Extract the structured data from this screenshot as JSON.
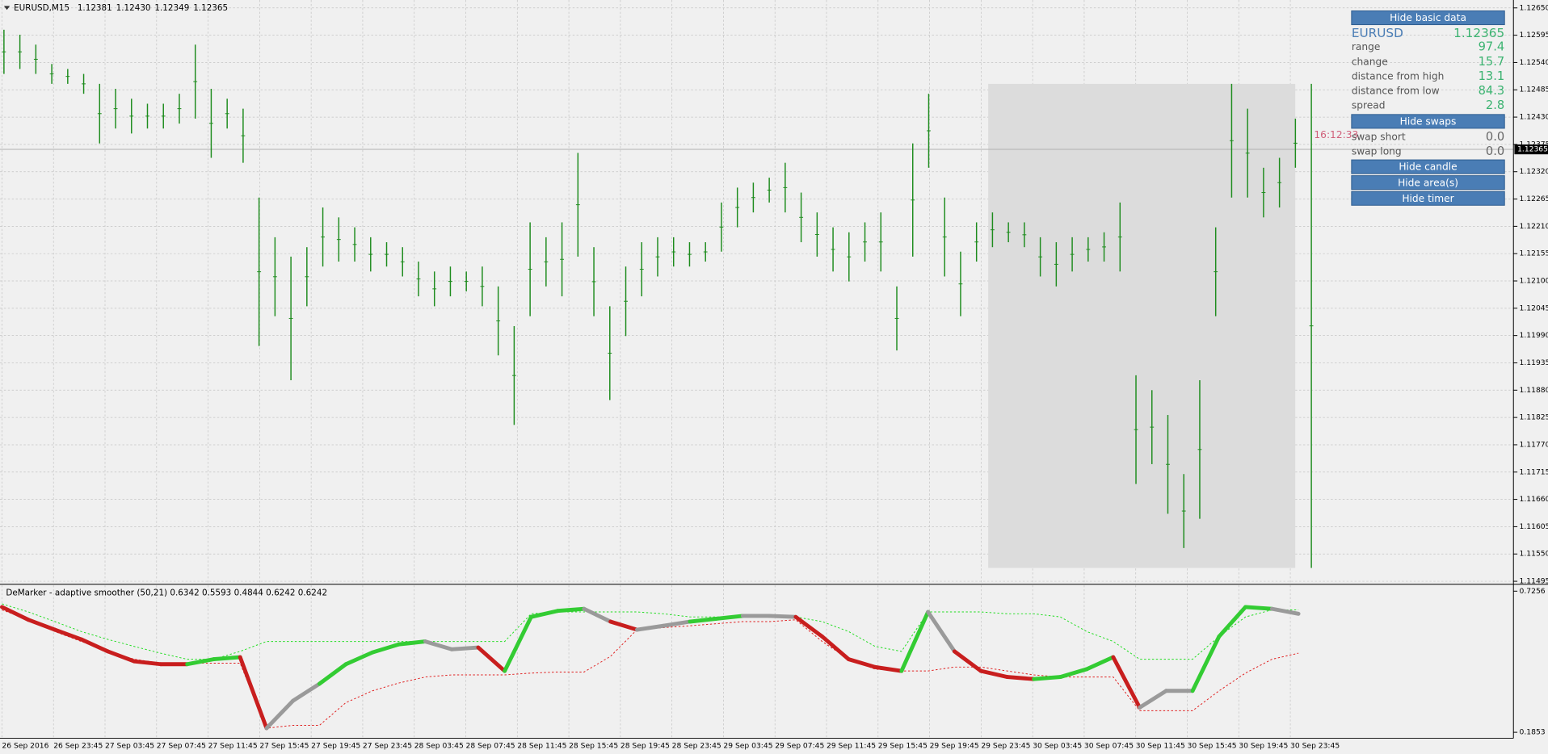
{
  "header": {
    "symbol": "EURUSD,M15",
    "ohlc": [
      "1.12381",
      "1.12430",
      "1.12349",
      "1.12365"
    ]
  },
  "chart": {
    "type": "ohlc-bars",
    "color": "#1e8c1e",
    "grid": true,
    "highs": [
      1.12606,
      1.12596,
      1.12576,
      1.12537,
      1.12527,
      1.12517,
      1.12497,
      1.12487,
      1.12467,
      1.12457,
      1.12457,
      1.12477,
      1.12576,
      1.12487,
      1.12467,
      1.12447,
      1.12268,
      1.12188,
      1.12149,
      1.12168,
      1.12248,
      1.12228,
      1.12208,
      1.12188,
      1.12178,
      1.12168,
      1.12139,
      1.12119,
      1.12129,
      1.12119,
      1.12129,
      1.12089,
      1.12009,
      1.12218,
      1.12188,
      1.12218,
      1.12358,
      1.12168,
      1.12049,
      1.12129,
      1.12178,
      1.12188,
      1.12188,
      1.12178,
      1.12178,
      1.12258,
      1.12288,
      1.12298,
      1.12308,
      1.12338,
      1.12278,
      1.12238,
      1.12208,
      1.12198,
      1.12218,
      1.12238,
      1.12089,
      1.12377,
      1.12477,
      1.12268,
      1.12159,
      1.12218,
      1.12238,
      1.12218,
      1.12218,
      1.12188,
      1.12178,
      1.12188,
      1.12188,
      1.12198,
      1.12258,
      1.1191,
      1.1188,
      1.1183,
      1.11711,
      1.119,
      1.12208,
      1.12497,
      1.12447,
      1.12328,
      1.12348,
      1.12427,
      1.12497
    ],
    "lows": [
      1.12517,
      1.12527,
      1.12517,
      1.12497,
      1.12497,
      1.12477,
      1.12377,
      1.12407,
      1.12397,
      1.12407,
      1.12407,
      1.12417,
      1.12427,
      1.12348,
      1.12407,
      1.12338,
      1.11969,
      1.12029,
      1.119,
      1.12049,
      1.12129,
      1.12139,
      1.12139,
      1.12119,
      1.12129,
      1.12109,
      1.12069,
      1.12049,
      1.12069,
      1.12079,
      1.12049,
      1.1195,
      1.1181,
      1.12029,
      1.12089,
      1.12069,
      1.12149,
      1.12029,
      1.1186,
      1.11989,
      1.12069,
      1.12109,
      1.12129,
      1.12129,
      1.12139,
      1.12159,
      1.12208,
      1.12238,
      1.12258,
      1.12238,
      1.12178,
      1.12149,
      1.12119,
      1.12099,
      1.12139,
      1.12119,
      1.1196,
      1.12149,
      1.12328,
      1.12109,
      1.12029,
      1.12139,
      1.12168,
      1.12178,
      1.12168,
      1.12109,
      1.12089,
      1.12119,
      1.12139,
      1.12139,
      1.12119,
      1.11691,
      1.11731,
      1.11631,
      1.11562,
      1.11621,
      1.12029,
      1.12268,
      1.12268,
      1.12228,
      1.12248,
      1.12328,
      1.11522
    ],
    "ylim": [
      1.11495,
      1.1265
    ],
    "yticks": [
      {
        "value": 1.1265,
        "label": "1.12650"
      },
      1.12595,
      {
        "value": 1.1254,
        "label": "1.12540"
      },
      1.12485,
      {
        "value": 1.1243,
        "label": "1.12430"
      },
      1.12375,
      {
        "value": 1.1232,
        "label": "1.12320"
      },
      1.12265,
      {
        "value": 1.1221,
        "label": "1.12210"
      },
      1.12155,
      {
        "value": 1.121,
        "label": "1.12100"
      },
      1.12045,
      {
        "value": 1.1199,
        "label": "1.11990"
      },
      1.11935,
      {
        "value": 1.1188,
        "label": "1.11880"
      },
      1.11825,
      {
        "value": 1.1177,
        "label": "1.11770"
      },
      1.11715,
      {
        "value": 1.1166,
        "label": "1.11660"
      },
      1.11605,
      {
        "value": 1.1155,
        "label": "1.11550"
      },
      1.11495
    ],
    "current_price": 1.12365,
    "timer": "16:12:33",
    "area": {
      "high": 1.12497,
      "low": 1.11522,
      "color": "#dcdcdc"
    },
    "xlabels": [
      "26 Sep 2016",
      "26 Sep 23:45",
      "27 Sep 03:45",
      "27 Sep 07:45",
      "27 Sep 11:45",
      "27 Sep 15:45",
      "27 Sep 19:45",
      "27 Sep 23:45",
      "28 Sep 03:45",
      "28 Sep 07:45",
      "28 Sep 11:45",
      "28 Sep 15:45",
      "28 Sep 19:45",
      "28 Sep 23:45",
      "29 Sep 03:45",
      "29 Sep 07:45",
      "29 Sep 11:45",
      "29 Sep 15:45",
      "29 Sep 19:45",
      "29 Sep 23:45",
      "30 Sep 03:45",
      "30 Sep 07:45",
      "30 Sep 11:45",
      "30 Sep 15:45",
      "30 Sep 19:45",
      "30 Sep 23:45"
    ]
  },
  "indicator": {
    "type": "line",
    "label": "DeMarker - adaptive smoother (50,21) 0.6342 0.5593 0.4844 0.6242 0.6242",
    "ylim": [
      0.1853,
      0.7256
    ],
    "yticks": [
      0.7256,
      0.1853
    ],
    "main": {
      "values": [
        0.665,
        0.616,
        0.578,
        0.541,
        0.495,
        0.457,
        0.446,
        0.446,
        0.465,
        0.473,
        0.201,
        0.306,
        0.371,
        0.446,
        0.491,
        0.522,
        0.533,
        0.503,
        0.51,
        0.42,
        0.627,
        0.65,
        0.658,
        0.609,
        0.578,
        0.593,
        0.609,
        0.62,
        0.631,
        0.631,
        0.627,
        0.552,
        0.465,
        0.435,
        0.42,
        0.646,
        0.495,
        0.42,
        0.397,
        0.389,
        0.397,
        0.427,
        0.473,
        0.28,
        0.344,
        0.344,
        0.552,
        0.665,
        0.658,
        0.639
      ],
      "colors": [
        "#c81e1e",
        "#c81e1e",
        "#c81e1e",
        "#c81e1e",
        "#c81e1e",
        "#c81e1e",
        "#c81e1e",
        "#c81e1e",
        "#33cc33",
        "#33cc33",
        "#c81e1e",
        "#9a9a9a",
        "#9a9a9a",
        "#33cc33",
        "#33cc33",
        "#33cc33",
        "#33cc33",
        "#9a9a9a",
        "#9a9a9a",
        "#c81e1e",
        "#33cc33",
        "#33cc33",
        "#33cc33",
        "#9a9a9a",
        "#c81e1e",
        "#9a9a9a",
        "#9a9a9a",
        "#33cc33",
        "#33cc33",
        "#9a9a9a",
        "#9a9a9a",
        "#c81e1e",
        "#c81e1e",
        "#c81e1e",
        "#c81e1e",
        "#33cc33",
        "#9a9a9a",
        "#c81e1e",
        "#c81e1e",
        "#c81e1e",
        "#33cc33",
        "#33cc33",
        "#33cc33",
        "#c81e1e",
        "#9a9a9a",
        "#9a9a9a",
        "#33cc33",
        "#33cc33",
        "#33cc33",
        "#9a9a9a"
      ]
    },
    "upper": {
      "color": "#22dd22",
      "values": [
        0.677,
        0.646,
        0.609,
        0.571,
        0.541,
        0.514,
        0.488,
        0.465,
        0.465,
        0.495,
        0.533,
        0.533,
        0.533,
        0.533,
        0.533,
        0.533,
        0.533,
        0.533,
        0.533,
        0.533,
        0.639,
        0.646,
        0.646,
        0.646,
        0.646,
        0.639,
        0.627,
        0.627,
        0.627,
        0.627,
        0.627,
        0.609,
        0.571,
        0.514,
        0.495,
        0.646,
        0.646,
        0.646,
        0.639,
        0.639,
        0.627,
        0.571,
        0.533,
        0.465,
        0.465,
        0.465,
        0.552,
        0.627,
        0.654,
        0.654
      ]
    },
    "lower": {
      "color": "#e02020",
      "values": [
        0.654,
        0.616,
        0.571,
        0.533,
        0.495,
        0.465,
        0.45,
        0.45,
        0.45,
        0.45,
        0.201,
        0.212,
        0.212,
        0.299,
        0.344,
        0.374,
        0.397,
        0.405,
        0.405,
        0.405,
        0.412,
        0.416,
        0.416,
        0.476,
        0.578,
        0.586,
        0.593,
        0.601,
        0.609,
        0.609,
        0.616,
        0.533,
        0.465,
        0.427,
        0.42,
        0.42,
        0.435,
        0.435,
        0.42,
        0.405,
        0.397,
        0.397,
        0.397,
        0.268,
        0.268,
        0.268,
        0.344,
        0.412,
        0.465,
        0.488
      ]
    }
  },
  "panel": {
    "buttons": [
      "Hide basic data",
      "Hide swaps",
      "Hide candle",
      "Hide area(s)",
      "Hide timer"
    ],
    "symbol": "EURUSD",
    "price": "1.12365",
    "rows": [
      [
        "range",
        "97.4"
      ],
      [
        "change",
        "15.7"
      ],
      [
        "distance from high",
        "13.1"
      ],
      [
        "distance from low",
        "84.3"
      ],
      [
        "spread",
        "2.8"
      ]
    ],
    "swaps": [
      [
        "swap short",
        "0.0"
      ],
      [
        "swap long",
        "0.0"
      ]
    ]
  }
}
